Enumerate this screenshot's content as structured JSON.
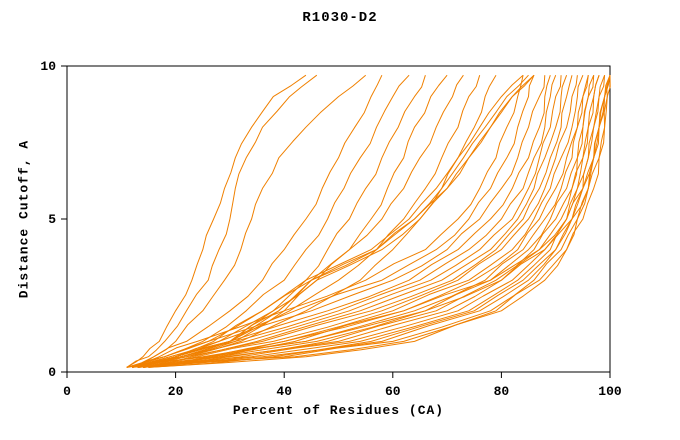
{
  "chart_data": {
    "type": "line",
    "title": "R1030-D2",
    "xlabel": "Percent of Residues (CA)",
    "ylabel": "Distance Cutoff, A",
    "xlim": [
      0,
      100
    ],
    "ylim": [
      0,
      10
    ],
    "x_ticks": [
      0,
      20,
      40,
      60,
      80,
      100
    ],
    "y_ticks": [
      0,
      5,
      10
    ],
    "grid": false,
    "legend": "none",
    "line_color": "#f08000",
    "axis_color": "#000000",
    "y_grid": [
      0.15,
      0.5,
      1,
      2,
      3,
      4,
      5,
      6,
      7,
      8,
      9,
      9.7
    ],
    "series_x": [
      [
        11,
        14,
        17,
        20,
        23,
        25,
        27,
        29,
        31,
        34,
        38,
        44
      ],
      [
        11,
        15,
        18,
        22,
        26,
        28,
        30,
        31,
        33,
        36,
        41,
        46
      ],
      [
        12,
        16,
        20,
        25,
        29,
        32,
        34,
        36,
        39,
        44,
        50,
        55
      ],
      [
        11,
        16,
        22,
        30,
        36,
        40,
        44,
        47,
        50,
        53,
        56,
        58
      ],
      [
        12,
        18,
        25,
        33,
        40,
        44,
        48,
        51,
        54,
        57,
        60,
        63
      ],
      [
        12,
        19,
        27,
        36,
        44,
        48,
        52,
        55,
        58,
        61,
        64,
        66
      ],
      [
        13,
        20,
        28,
        38,
        46,
        52,
        56,
        59,
        62,
        64,
        67,
        70
      ],
      [
        12,
        18,
        26,
        36,
        45,
        52,
        58,
        62,
        65,
        68,
        71,
        73
      ],
      [
        13,
        21,
        30,
        41,
        50,
        57,
        62,
        66,
        69,
        72,
        74,
        76
      ],
      [
        13,
        22,
        32,
        44,
        54,
        60,
        65,
        69,
        72,
        75,
        77,
        79
      ],
      [
        12,
        20,
        30,
        38,
        44,
        56,
        63,
        68,
        72,
        76,
        80,
        84
      ],
      [
        12,
        20,
        30,
        39,
        45,
        57,
        64,
        69,
        73,
        77,
        81,
        85
      ],
      [
        13,
        21,
        31,
        40,
        46,
        58,
        65,
        70,
        74,
        78,
        82,
        86
      ],
      [
        12,
        21,
        30,
        39,
        45,
        57,
        64,
        70,
        74,
        78,
        82,
        86
      ],
      [
        11,
        17,
        24,
        40,
        55,
        66,
        72,
        76,
        79,
        81,
        83,
        84
      ],
      [
        12,
        18,
        26,
        42,
        58,
        68,
        74,
        78,
        81,
        83,
        85,
        86
      ],
      [
        12,
        19,
        28,
        45,
        60,
        70,
        76,
        80,
        83,
        85,
        87,
        88
      ],
      [
        13,
        20,
        30,
        48,
        63,
        72,
        78,
        82,
        85,
        87,
        88,
        89
      ],
      [
        12,
        20,
        31,
        50,
        65,
        74,
        80,
        84,
        86,
        88,
        89,
        90
      ],
      [
        13,
        21,
        33,
        52,
        67,
        76,
        82,
        85,
        87,
        89,
        90,
        91
      ],
      [
        13,
        22,
        35,
        54,
        69,
        78,
        83,
        86,
        88,
        90,
        91,
        92
      ],
      [
        14,
        23,
        36,
        56,
        71,
        79,
        84,
        87,
        89,
        91,
        92,
        93
      ],
      [
        14,
        24,
        38,
        58,
        72,
        80,
        85,
        88,
        90,
        92,
        93,
        94
      ],
      [
        14,
        25,
        40,
        60,
        74,
        82,
        86,
        89,
        91,
        93,
        94,
        95
      ],
      [
        15,
        26,
        42,
        62,
        75,
        83,
        87,
        90,
        92,
        94,
        95,
        96
      ],
      [
        13,
        27,
        44,
        64,
        77,
        84,
        88,
        91,
        93,
        94,
        95,
        96
      ],
      [
        14,
        28,
        46,
        66,
        78,
        85,
        89,
        92,
        94,
        95,
        96,
        97
      ],
      [
        14,
        29,
        48,
        68,
        79,
        86,
        90,
        93,
        94,
        95,
        96,
        97
      ],
      [
        13,
        30,
        50,
        70,
        80,
        87,
        91,
        93,
        95,
        96,
        97,
        98
      ],
      [
        14,
        32,
        52,
        72,
        82,
        88,
        92,
        94,
        95,
        96,
        97,
        98
      ],
      [
        13,
        34,
        54,
        74,
        83,
        89,
        92,
        94,
        96,
        97,
        98,
        99
      ],
      [
        14,
        36,
        56,
        75,
        84,
        90,
        93,
        95,
        96,
        97,
        98,
        99
      ],
      [
        15,
        38,
        58,
        76,
        85,
        90,
        93,
        95,
        97,
        98,
        99,
        100
      ],
      [
        13,
        40,
        60,
        78,
        86,
        91,
        94,
        96,
        97,
        98,
        99,
        100
      ],
      [
        14,
        42,
        62,
        79,
        87,
        92,
        94,
        96,
        98,
        99,
        99.5,
        100
      ],
      [
        15,
        44,
        64,
        80,
        88,
        92,
        95,
        97,
        98,
        99,
        99.5,
        100
      ],
      [
        12,
        28,
        44,
        66,
        80,
        88,
        93,
        96,
        97,
        98,
        99,
        100
      ],
      [
        11,
        26,
        40,
        62,
        78,
        87,
        92,
        95,
        97,
        98,
        99,
        100
      ]
    ]
  }
}
